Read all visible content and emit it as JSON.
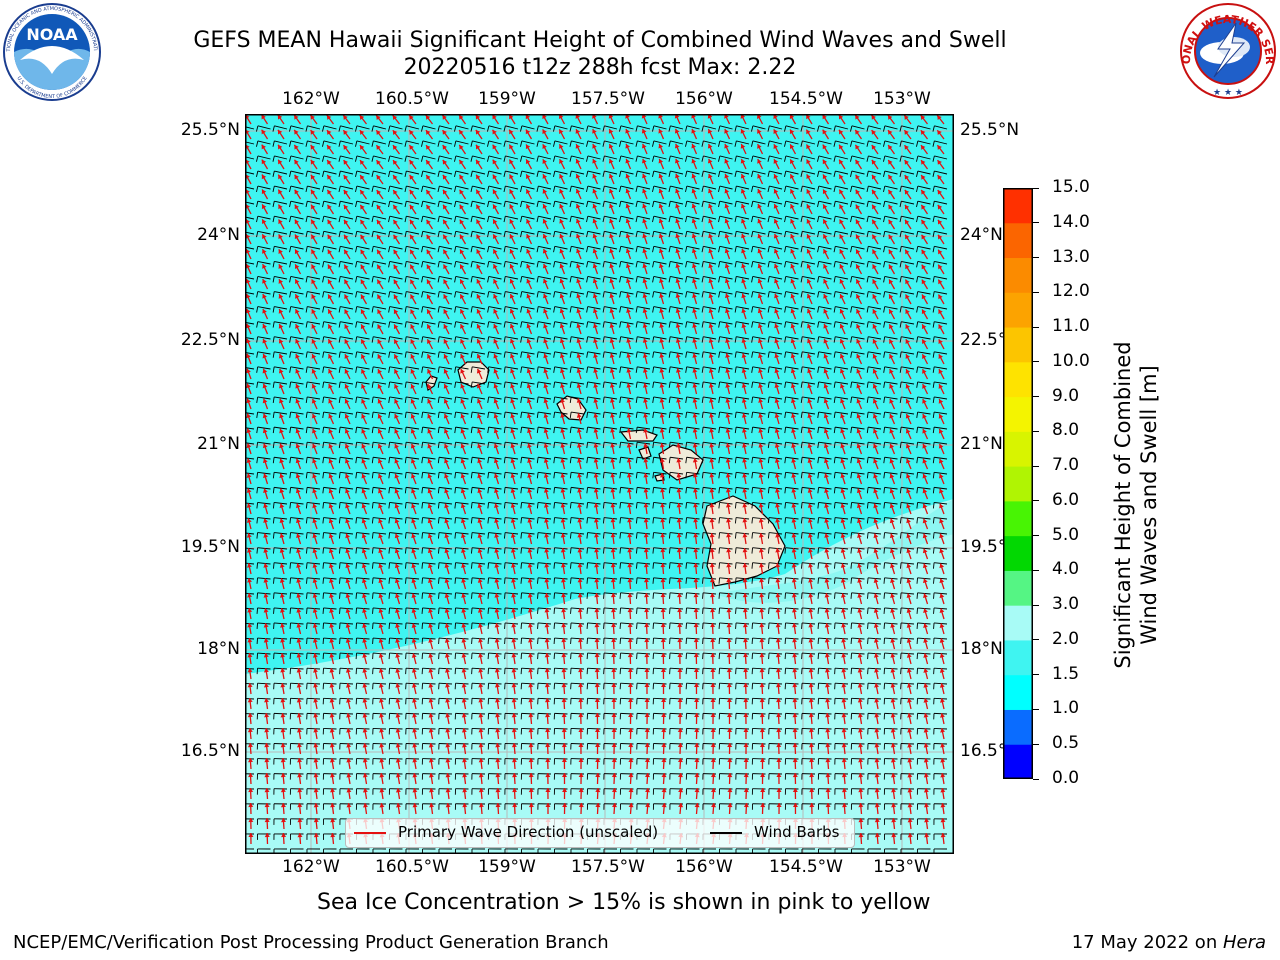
{
  "header": {
    "title_line1": "GEFS MEAN Hawaii Significant Height of Combined Wind Waves and Swell",
    "title_line2": "20220516 t12z 288h fcst   Max: 2.22"
  },
  "logos": {
    "noaa_text": "NOAA",
    "noaa_ring_top": "NATIONAL OCEANIC AND ATMOSPHERIC ADMINISTRATION",
    "noaa_ring_bottom": "U.S. DEPARTMENT OF COMMERCE",
    "nws_ring": "NATIONAL WEATHER SERVICE"
  },
  "map": {
    "lon_labels": [
      "162°W",
      "160.5°W",
      "159°W",
      "157.5°W",
      "156°W",
      "154.5°W",
      "153°W"
    ],
    "lat_labels": [
      "25.5°N",
      "24°N",
      "22.5°N",
      "21°N",
      "19.5°N",
      "18°N",
      "16.5°N"
    ],
    "legend": {
      "wave_direction": "Primary Wave Direction (unscaled)",
      "wind_barbs": "Wind Barbs"
    },
    "colors": {
      "sea_main": "#3ff4f1",
      "sea_light": "#a8fbf6",
      "land": "#efebd9",
      "wave_arrow": "#e41010",
      "wind_barb": "#000000",
      "grid": "#b8b8b8"
    }
  },
  "colorbar": {
    "title_line1": "Significant Height of Combined",
    "title_line2": "Wind Waves and Swell [m]",
    "ticks": [
      "0.0",
      "0.5",
      "1.0",
      "1.5",
      "2.0",
      "3.0",
      "4.0",
      "5.0",
      "6.0",
      "7.0",
      "8.0",
      "9.0",
      "10.0",
      "11.0",
      "12.0",
      "13.0",
      "14.0",
      "15.0"
    ],
    "colors": [
      "#0000ff",
      "#0a6cff",
      "#00ffff",
      "#3ff4f1",
      "#a8fbf6",
      "#55f584",
      "#02d802",
      "#48f404",
      "#b0f403",
      "#d8f400",
      "#f4f400",
      "#fee300",
      "#fcc500",
      "#fca300",
      "#fb8b00",
      "#fb6500",
      "#ff3000",
      "#ff0000"
    ]
  },
  "caption": "Sea Ice Concentration > 15% is shown in pink to yellow",
  "footer": {
    "left": "NCEP/EMC/Verification Post Processing Product Generation Branch",
    "right_prefix": "17 May 2022 on ",
    "right_machine": "Hera"
  }
}
